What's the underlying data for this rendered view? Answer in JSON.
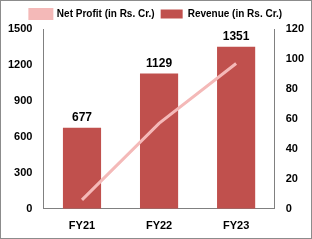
{
  "chart_data": {
    "type": "bar",
    "categories": [
      "FY21",
      "FY22",
      "FY23"
    ],
    "series": [
      {
        "name": "Revenue (in Rs. Cr.)",
        "type": "bar",
        "color": "#c0504d",
        "values": [
          677,
          1129,
          1351
        ],
        "data_labels": true
      },
      {
        "name": "Net Profit (in Rs. Cr.)",
        "type": "line",
        "color": "#f4b9b8",
        "values": [
          6,
          57,
          97
        ],
        "axis": "y2"
      }
    ],
    "ylim": [
      0,
      1500
    ],
    "yticks": [
      0,
      300,
      600,
      900,
      1200,
      1500
    ],
    "y2lim": [
      0,
      120
    ],
    "y2ticks": [
      0,
      20,
      40,
      60,
      80,
      100,
      120
    ],
    "grid": false,
    "legend": "top"
  }
}
